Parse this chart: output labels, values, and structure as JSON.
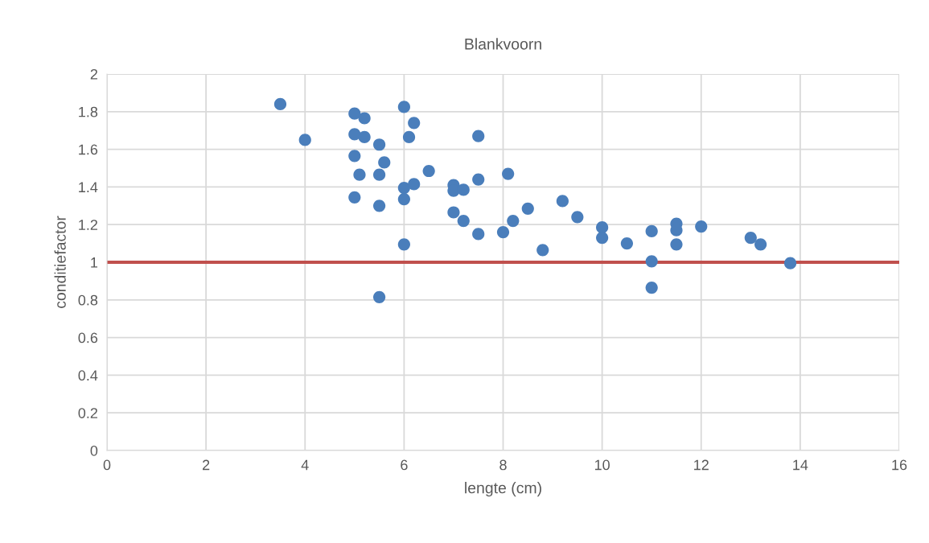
{
  "chart_data": {
    "type": "scatter",
    "title": "Blankvoorn",
    "xlabel": "lengte (cm)",
    "ylabel": "conditiefactor",
    "x": [
      3.5,
      4,
      5,
      5,
      5,
      5,
      5.1,
      5.2,
      5.2,
      5.5,
      5.5,
      5.5,
      5.5,
      5.6,
      6,
      6.1,
      6.2,
      6,
      6,
      6,
      6.2,
      6.5,
      7,
      7,
      7.2,
      7,
      7.2,
      7.5,
      7.5,
      7.5,
      8,
      8.1,
      8.2,
      8.5,
      8.8,
      9.2,
      9.5,
      10,
      10,
      10.5,
      11,
      11,
      11,
      11.5,
      11.5,
      11.5,
      12,
      13,
      13.2,
      13.8
    ],
    "values": [
      1.84,
      1.65,
      1.79,
      1.68,
      1.565,
      1.345,
      1.465,
      1.765,
      1.665,
      1.625,
      1.465,
      1.3,
      0.815,
      1.53,
      1.825,
      1.665,
      1.74,
      1.395,
      1.335,
      1.095,
      1.415,
      1.485,
      1.41,
      1.38,
      1.385,
      1.265,
      1.22,
      1.67,
      1.44,
      1.15,
      1.16,
      1.47,
      1.22,
      1.285,
      1.065,
      1.325,
      1.24,
      1.185,
      1.13,
      1.1,
      1.165,
      1.005,
      0.865,
      1.205,
      1.17,
      1.095,
      1.19,
      1.13,
      1.095,
      0.995
    ],
    "color": "#4a7ebb",
    "marker": "circle",
    "xlim": [
      0,
      16
    ],
    "xticks": [
      0,
      2,
      4,
      6,
      8,
      10,
      12,
      14,
      16
    ],
    "ylim": [
      0,
      2
    ],
    "yticks": [
      0,
      {
        "value": 0.2,
        "label": "0.2"
      },
      {
        "value": 0.4,
        "label": "0.4"
      },
      {
        "value": 0.6,
        "label": "0.6"
      },
      {
        "value": 0.8,
        "label": "0.8"
      },
      1,
      {
        "value": 1.2,
        "label": "1.2"
      },
      {
        "value": 1.4,
        "label": "1.4"
      },
      {
        "value": 1.6,
        "label": "1.6"
      },
      {
        "value": 1.8,
        "label": "1.8"
      },
      2
    ],
    "ref_lines": [
      {
        "axis": "y",
        "value": 1,
        "color": "#c0504d"
      }
    ],
    "grid": true
  }
}
